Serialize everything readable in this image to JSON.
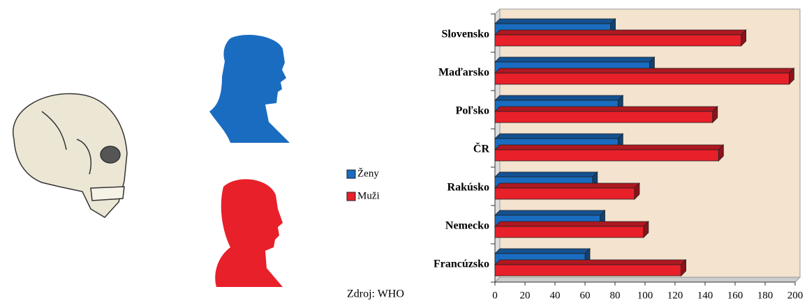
{
  "chart_data": {
    "type": "bar",
    "orientation": "horizontal",
    "categories": [
      "Slovensko",
      "Maďarsko",
      "Poľsko",
      "ČR",
      "Rakúsko",
      "Nemecko",
      "Francúzsko"
    ],
    "series": [
      {
        "name": "Ženy",
        "color": "#1a6cc0",
        "values": [
          77,
          103,
          82,
          82,
          65,
          70,
          60
        ]
      },
      {
        "name": "Muži",
        "color": "#e8202a",
        "values": [
          164,
          196,
          145,
          149,
          93,
          99,
          124
        ]
      }
    ],
    "xlim": [
      0,
      200
    ],
    "xticks": [
      0,
      20,
      40,
      60,
      80,
      100,
      120,
      140,
      160,
      180,
      200
    ],
    "source": "Zdroj: WHO"
  }
}
